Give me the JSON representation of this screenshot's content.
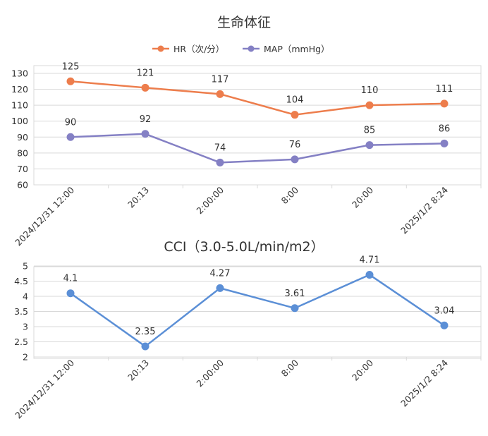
{
  "chart_data": [
    {
      "type": "line",
      "title": "生命体征",
      "categories": [
        "2024/12/31 12:00",
        "20:13",
        "2:00:00",
        "8:00",
        "20:00",
        "2025/1/2 8:24"
      ],
      "ylim": [
        60,
        130
      ],
      "yticks": [
        60,
        70,
        80,
        90,
        100,
        110,
        120,
        130
      ],
      "grid": true,
      "legend": "top-center",
      "series": [
        {
          "name": "HR（次/分）",
          "color": "#ed7d4c",
          "values": [
            125,
            121,
            117,
            104,
            110,
            111
          ]
        },
        {
          "name": "MAP（mmHg）",
          "color": "#8480c4",
          "values": [
            90,
            92,
            74,
            76,
            85,
            86
          ]
        }
      ]
    },
    {
      "type": "line",
      "title": "CCI（3.0-5.0L/min/m2）",
      "categories": [
        "2024/12/31 12:00",
        "20:13",
        "2:00:00",
        "8:00",
        "20:00",
        "2025/1/2 8:24"
      ],
      "ylim": [
        2,
        5
      ],
      "yticks": [
        "2",
        "2.5",
        "3",
        "3.5",
        "4",
        "4.5",
        "5"
      ],
      "grid": true,
      "legend": "none",
      "series": [
        {
          "color": "#5b8fd6",
          "values": [
            4.1,
            2.35,
            4.27,
            3.61,
            4.71,
            3.04
          ]
        }
      ]
    }
  ]
}
